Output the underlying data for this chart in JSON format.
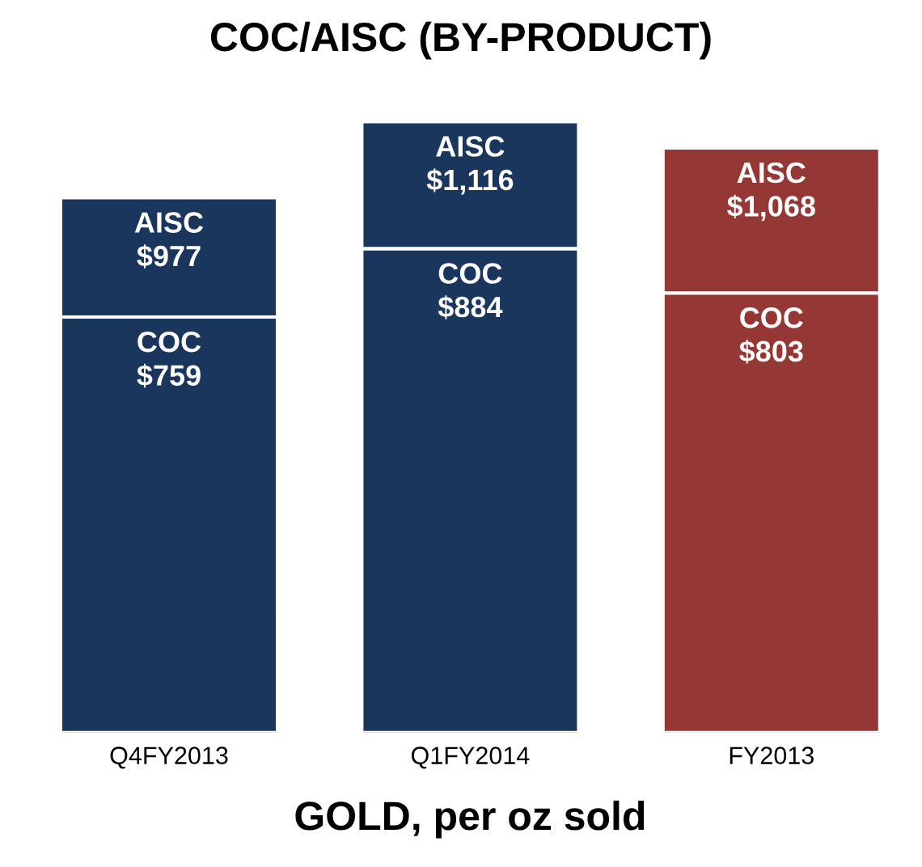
{
  "chart_data": {
    "type": "bar",
    "title": "COC/AISC (BY-PRODUCT)",
    "xlabel": "GOLD, per oz sold",
    "categories": [
      "Q4FY2013",
      "Q1FY2014",
      "FY2013"
    ],
    "stacked": true,
    "legend": false,
    "totals": [
      "$977",
      "$1,116",
      "$1,068"
    ],
    "series": [
      {
        "name": "COC",
        "colors": [
          "#1b365d",
          "#1b365d",
          "#953735"
        ],
        "values": [
          759,
          884,
          803
        ],
        "value_labels": [
          "$759",
          "$884",
          "$803"
        ]
      },
      {
        "name": "AISC",
        "colors": [
          "#1b365d",
          "#1b365d",
          "#953735"
        ],
        "values": [
          218,
          232,
          265
        ]
      }
    ]
  }
}
